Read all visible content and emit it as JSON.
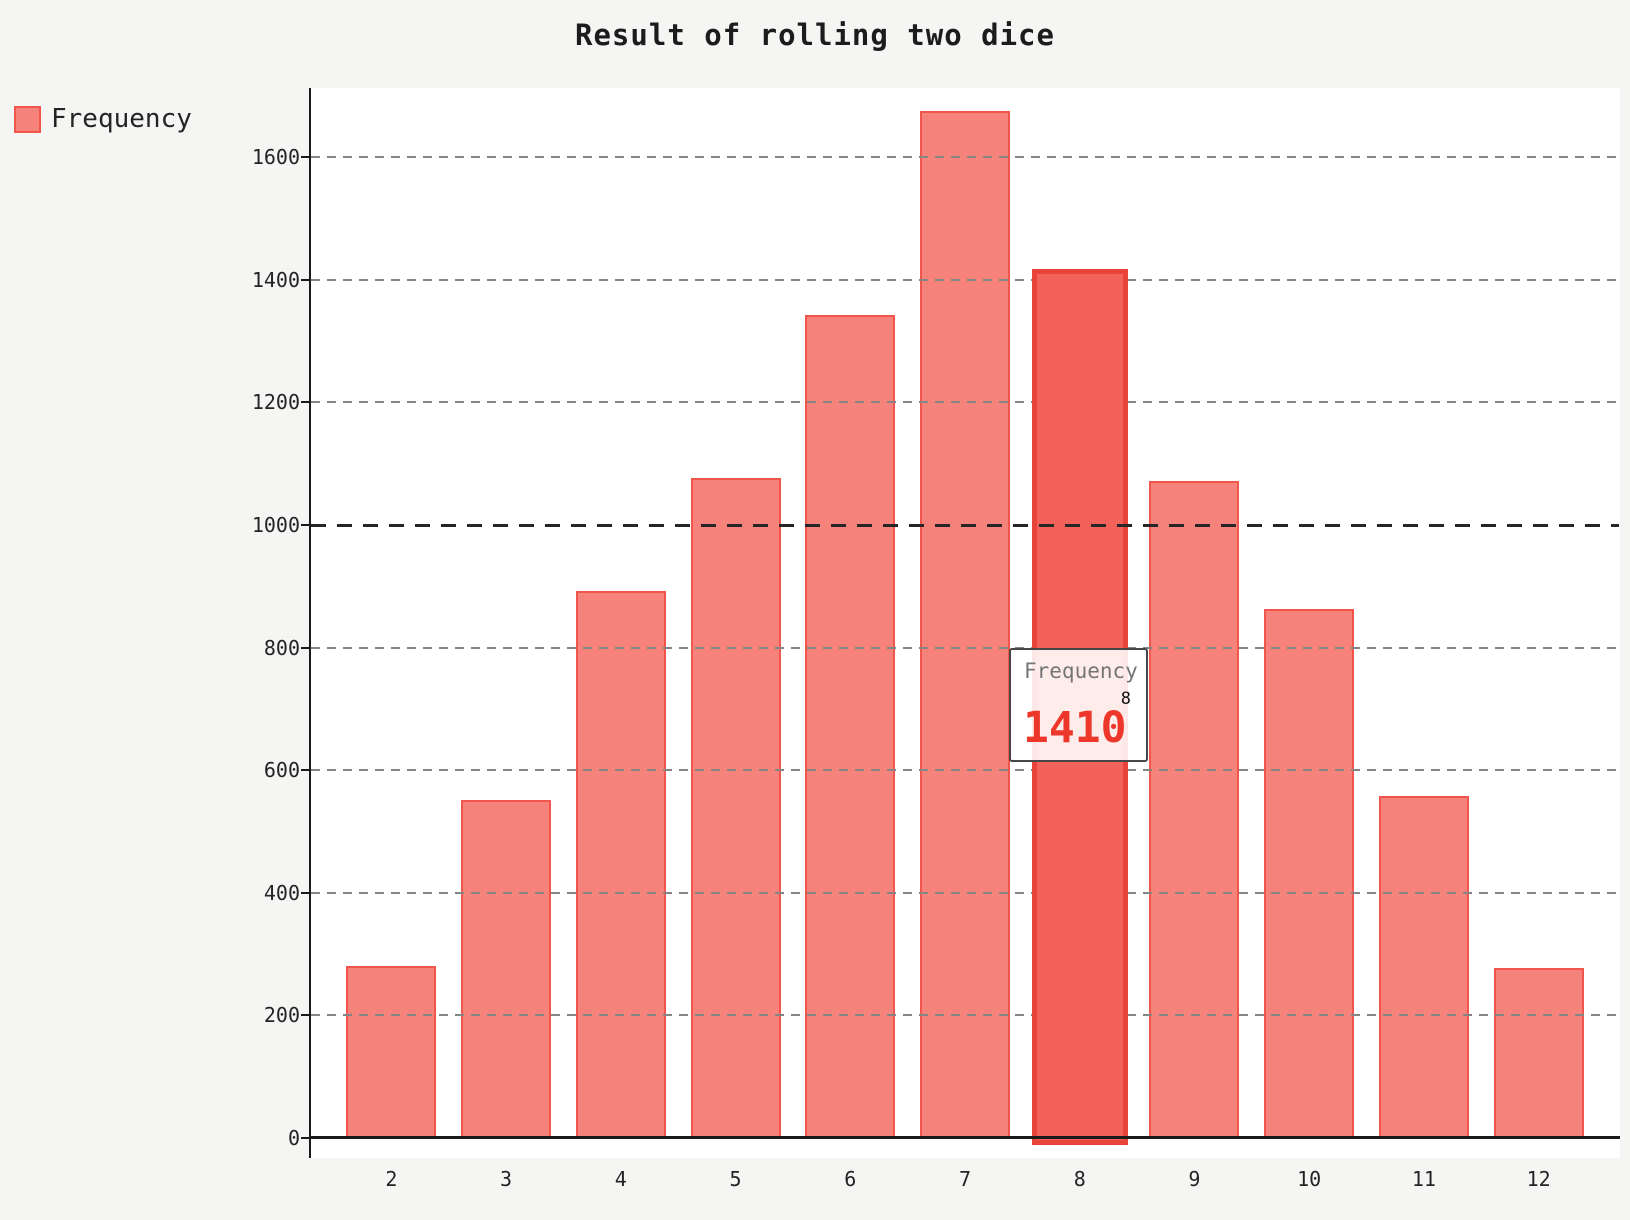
{
  "title": "Result of rolling two dice",
  "legend": {
    "label": "Frequency"
  },
  "tooltip": {
    "series_label": "Frequency",
    "category": "8",
    "value": "1410"
  },
  "colors": {
    "background": "#f5f5f4",
    "plot_background": "#ffffff",
    "axis": "#1a1a1a",
    "text": "#242424",
    "bar_fill": "#f5827b",
    "bar_border": "#f1564c",
    "bar_highlight_fill": "#f2625a",
    "bar_highlight_border": "#e8443a",
    "gridline": "#858585",
    "gridline_emphasis": "#262626",
    "tooltip_series_color": "#757575",
    "tooltip_value_color": "#ee372b"
  },
  "chart_data": {
    "type": "bar",
    "title": "Result of rolling two dice",
    "categories": [
      "2",
      "3",
      "4",
      "5",
      "6",
      "7",
      "8",
      "9",
      "10",
      "11",
      "12"
    ],
    "series": [
      {
        "name": "Frequency",
        "values": [
          280,
          552,
          892,
          1077,
          1343,
          1676,
          1410,
          1072,
          863,
          558,
          277
        ]
      }
    ],
    "highlighted_category": "8",
    "highlighted_value": 1410,
    "xlabel": "",
    "ylabel": "",
    "ylim": [
      0,
      1700
    ],
    "y_ticks": [
      0,
      200,
      400,
      600,
      800,
      1000,
      1200,
      1400,
      1600
    ],
    "emphasized_gridline": 1000,
    "grid": true,
    "legend_position": "top-left"
  }
}
